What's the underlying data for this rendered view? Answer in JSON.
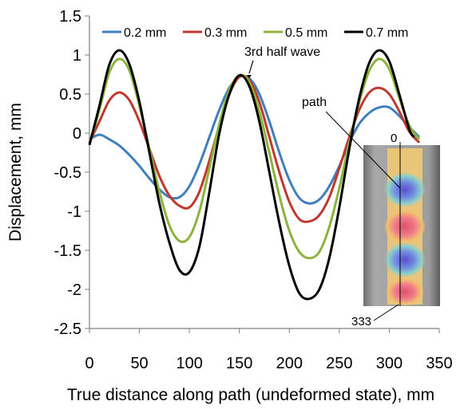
{
  "chart_data": {
    "type": "line",
    "title": "",
    "xlabel": "True distance along path (undeformed state), mm",
    "ylabel": "Displacement, mm",
    "xlim": [
      0,
      350
    ],
    "ylim": [
      -2.5,
      1.5
    ],
    "x_ticks": [
      "0",
      "50",
      "100",
      "150",
      "200",
      "250",
      "300",
      "350"
    ],
    "y_ticks": [
      "1.5",
      "1",
      "0.5",
      "0",
      "-0.5",
      "-1",
      "-1.5",
      "-2",
      "-2.5"
    ],
    "grid": false,
    "legend_position": "top",
    "series": [
      {
        "name": "0.2 mm",
        "color": "#3f7fbf",
        "points": [
          [
            0,
            -0.08
          ],
          [
            10,
            -0.02
          ],
          [
            20,
            -0.08
          ],
          [
            30,
            -0.16
          ],
          [
            40,
            -0.28
          ],
          [
            50,
            -0.42
          ],
          [
            60,
            -0.58
          ],
          [
            70,
            -0.72
          ],
          [
            80,
            -0.82
          ],
          [
            90,
            -0.82
          ],
          [
            100,
            -0.68
          ],
          [
            110,
            -0.4
          ],
          [
            120,
            -0.05
          ],
          [
            130,
            0.3
          ],
          [
            140,
            0.58
          ],
          [
            150,
            0.72
          ],
          [
            160,
            0.7
          ],
          [
            170,
            0.5
          ],
          [
            180,
            0.15
          ],
          [
            190,
            -0.25
          ],
          [
            200,
            -0.6
          ],
          [
            210,
            -0.83
          ],
          [
            220,
            -0.9
          ],
          [
            230,
            -0.85
          ],
          [
            240,
            -0.68
          ],
          [
            250,
            -0.42
          ],
          [
            260,
            -0.12
          ],
          [
            270,
            0.12
          ],
          [
            280,
            0.26
          ],
          [
            290,
            0.33
          ],
          [
            300,
            0.33
          ],
          [
            310,
            0.22
          ],
          [
            320,
            0.08
          ],
          [
            330,
            -0.05
          ]
        ]
      },
      {
        "name": "0.3 mm",
        "color": "#c0392f",
        "points": [
          [
            0,
            -0.12
          ],
          [
            10,
            0.15
          ],
          [
            20,
            0.42
          ],
          [
            30,
            0.52
          ],
          [
            40,
            0.42
          ],
          [
            50,
            0.15
          ],
          [
            60,
            -0.2
          ],
          [
            70,
            -0.55
          ],
          [
            80,
            -0.8
          ],
          [
            90,
            -0.93
          ],
          [
            100,
            -0.95
          ],
          [
            110,
            -0.75
          ],
          [
            120,
            -0.35
          ],
          [
            130,
            0.1
          ],
          [
            140,
            0.5
          ],
          [
            150,
            0.72
          ],
          [
            160,
            0.68
          ],
          [
            170,
            0.4
          ],
          [
            180,
            -0.05
          ],
          [
            190,
            -0.5
          ],
          [
            200,
            -0.88
          ],
          [
            210,
            -1.1
          ],
          [
            220,
            -1.13
          ],
          [
            230,
            -1.05
          ],
          [
            240,
            -0.82
          ],
          [
            250,
            -0.45
          ],
          [
            260,
            -0.05
          ],
          [
            270,
            0.3
          ],
          [
            280,
            0.52
          ],
          [
            290,
            0.58
          ],
          [
            300,
            0.5
          ],
          [
            310,
            0.28
          ],
          [
            320,
            0.02
          ],
          [
            330,
            -0.12
          ]
        ]
      },
      {
        "name": "0.5 mm",
        "color": "#8cb43c",
        "points": [
          [
            0,
            -0.15
          ],
          [
            10,
            0.3
          ],
          [
            20,
            0.78
          ],
          [
            30,
            0.95
          ],
          [
            40,
            0.8
          ],
          [
            50,
            0.35
          ],
          [
            60,
            -0.2
          ],
          [
            70,
            -0.75
          ],
          [
            80,
            -1.18
          ],
          [
            90,
            -1.38
          ],
          [
            100,
            -1.33
          ],
          [
            110,
            -1.0
          ],
          [
            120,
            -0.45
          ],
          [
            130,
            0.12
          ],
          [
            140,
            0.55
          ],
          [
            150,
            0.74
          ],
          [
            160,
            0.65
          ],
          [
            170,
            0.28
          ],
          [
            180,
            -0.25
          ],
          [
            190,
            -0.8
          ],
          [
            200,
            -1.25
          ],
          [
            210,
            -1.52
          ],
          [
            220,
            -1.6
          ],
          [
            230,
            -1.52
          ],
          [
            240,
            -1.2
          ],
          [
            250,
            -0.7
          ],
          [
            260,
            -0.12
          ],
          [
            270,
            0.4
          ],
          [
            280,
            0.8
          ],
          [
            290,
            0.95
          ],
          [
            300,
            0.82
          ],
          [
            310,
            0.45
          ],
          [
            320,
            0.1
          ],
          [
            330,
            -0.08
          ]
        ]
      },
      {
        "name": "0.7 mm",
        "color": "#000000",
        "points": [
          [
            0,
            -0.15
          ],
          [
            10,
            0.35
          ],
          [
            20,
            0.88
          ],
          [
            30,
            1.06
          ],
          [
            40,
            0.88
          ],
          [
            50,
            0.4
          ],
          [
            60,
            -0.25
          ],
          [
            70,
            -0.9
          ],
          [
            80,
            -1.4
          ],
          [
            90,
            -1.75
          ],
          [
            100,
            -1.78
          ],
          [
            110,
            -1.45
          ],
          [
            120,
            -0.75
          ],
          [
            130,
            0.0
          ],
          [
            140,
            0.5
          ],
          [
            150,
            0.74
          ],
          [
            160,
            0.6
          ],
          [
            170,
            0.15
          ],
          [
            180,
            -0.5
          ],
          [
            190,
            -1.15
          ],
          [
            200,
            -1.7
          ],
          [
            210,
            -2.05
          ],
          [
            220,
            -2.12
          ],
          [
            230,
            -2.0
          ],
          [
            240,
            -1.6
          ],
          [
            250,
            -0.95
          ],
          [
            260,
            -0.2
          ],
          [
            270,
            0.45
          ],
          [
            280,
            0.9
          ],
          [
            290,
            1.06
          ],
          [
            300,
            0.92
          ],
          [
            310,
            0.5
          ],
          [
            320,
            0.05
          ],
          [
            325,
            -0.05
          ]
        ]
      }
    ],
    "annotations": [
      {
        "text": "3rd half wave"
      },
      {
        "text": "path"
      }
    ],
    "inset": {
      "label_start": "0",
      "label_end": "333"
    }
  },
  "colors": {
    "inset_panel": "#9a9a9a",
    "inset_strip_base": "#e8c070"
  }
}
